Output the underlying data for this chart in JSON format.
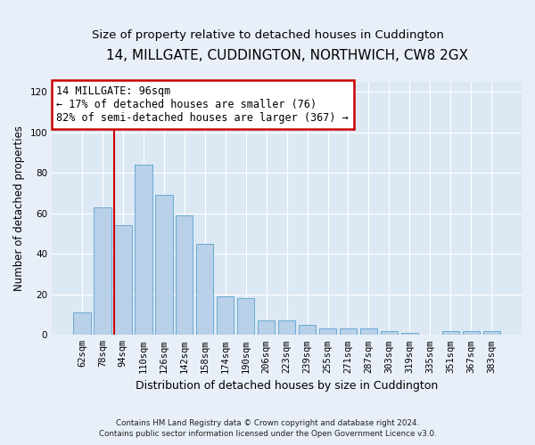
{
  "title": "14, MILLGATE, CUDDINGTON, NORTHWICH, CW8 2GX",
  "subtitle": "Size of property relative to detached houses in Cuddington",
  "xlabel": "Distribution of detached houses by size in Cuddington",
  "ylabel": "Number of detached properties",
  "bar_labels": [
    "62sqm",
    "78sqm",
    "94sqm",
    "110sqm",
    "126sqm",
    "142sqm",
    "158sqm",
    "174sqm",
    "190sqm",
    "206sqm",
    "223sqm",
    "239sqm",
    "255sqm",
    "271sqm",
    "287sqm",
    "303sqm",
    "319sqm",
    "335sqm",
    "351sqm",
    "367sqm",
    "383sqm"
  ],
  "bar_values": [
    11,
    63,
    54,
    84,
    69,
    59,
    45,
    19,
    18,
    7,
    7,
    5,
    3,
    3,
    3,
    2,
    1,
    0,
    2,
    2,
    2
  ],
  "bar_color": "#b8d0e8",
  "bar_edge_color": "#6aaad4",
  "annotation_line1": "14 MILLGATE: 96sqm",
  "annotation_line2": "← 17% of detached houses are smaller (76)",
  "annotation_line3": "82% of semi-detached houses are larger (367) →",
  "annotation_box_facecolor": "#ffffff",
  "annotation_box_edgecolor": "#cc0000",
  "vline_color": "#cc0000",
  "vline_x_index": 2,
  "ylim": [
    0,
    125
  ],
  "yticks": [
    0,
    20,
    40,
    60,
    80,
    100,
    120
  ],
  "footer_line1": "Contains HM Land Registry data © Crown copyright and database right 2024.",
  "footer_line2": "Contains public sector information licensed under the Open Government Licence v3.0.",
  "bg_color": "#e8eff8",
  "plot_bg_color": "#dce8f4",
  "grid_color": "#ffffff",
  "title_fontsize": 11,
  "subtitle_fontsize": 9.5,
  "annotation_fontsize": 8.5,
  "tick_fontsize": 7.5,
  "ylabel_fontsize": 8.5,
  "xlabel_fontsize": 9
}
